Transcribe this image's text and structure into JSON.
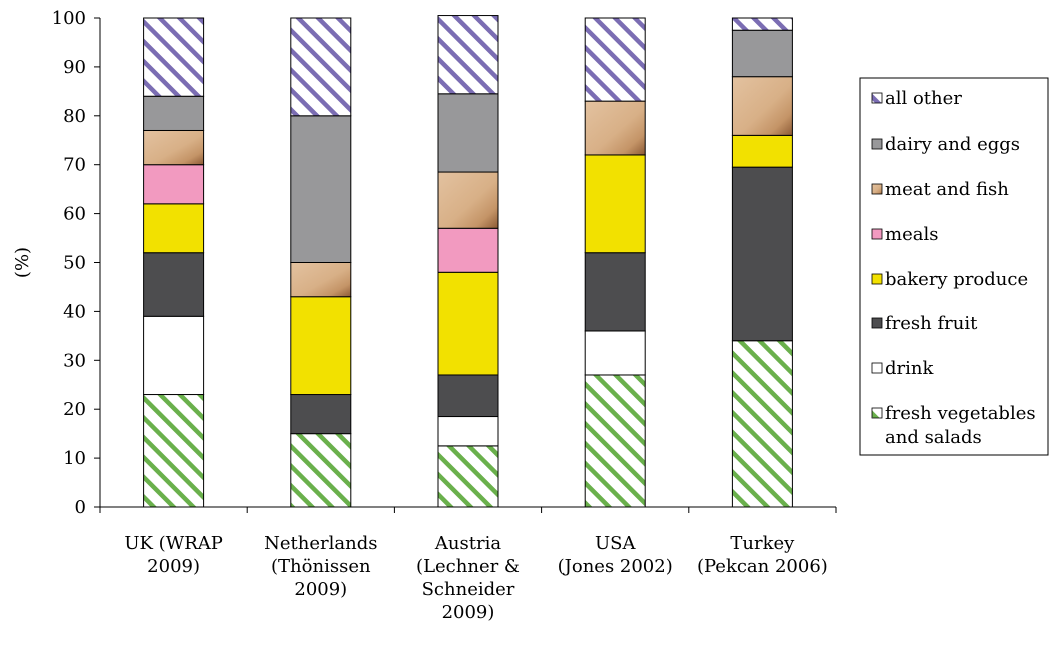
{
  "chart_data": {
    "type": "bar",
    "stacked": true,
    "ylabel": "(%)",
    "ylim": [
      0,
      100
    ],
    "yticks": [
      0,
      10,
      20,
      30,
      40,
      50,
      60,
      70,
      80,
      90,
      100
    ],
    "grid": false,
    "legend_position": "right",
    "categories": [
      [
        "UK (WRAP",
        "2009)"
      ],
      [
        "Netherlands",
        "(Thönissen",
        "2009)"
      ],
      [
        "Austria",
        "(Lechner &",
        "Schneider",
        "2009)"
      ],
      [
        "USA",
        "(Jones 2002)"
      ],
      [
        "Turkey",
        "(Pekcan 2006)"
      ]
    ],
    "series": [
      {
        "name": "fresh vegetables and salads",
        "legend_lines": [
          "fresh vegetables",
          "and salads"
        ],
        "pattern": "green-hatch",
        "color": "#6ab04c",
        "values": [
          23,
          15,
          12.5,
          27,
          34
        ]
      },
      {
        "name": "drink",
        "legend_lines": [
          "drink"
        ],
        "pattern": "solid",
        "color": "#ffffff",
        "values": [
          16,
          0,
          6,
          9,
          0
        ]
      },
      {
        "name": "fresh fruit",
        "legend_lines": [
          "fresh fruit"
        ],
        "pattern": "solid",
        "color": "#4d4d4f",
        "values": [
          13,
          8,
          8.5,
          16,
          35.5
        ]
      },
      {
        "name": "bakery produce",
        "legend_lines": [
          "bakery produce"
        ],
        "pattern": "solid",
        "color": "#f2e100",
        "values": [
          10,
          20,
          21,
          20,
          6.5
        ]
      },
      {
        "name": "meals",
        "legend_lines": [
          "meals"
        ],
        "pattern": "solid",
        "color": "#f29ac0",
        "values": [
          8,
          0,
          9,
          0,
          0
        ]
      },
      {
        "name": "meat and fish",
        "legend_lines": [
          "meat and fish"
        ],
        "pattern": "texture",
        "color": "#d9b48f",
        "values": [
          7,
          7,
          11.5,
          11,
          12
        ]
      },
      {
        "name": "dairy and eggs",
        "legend_lines": [
          "dairy and eggs"
        ],
        "pattern": "solid",
        "color": "#98989a",
        "values": [
          7,
          30,
          16,
          0,
          9.5
        ]
      },
      {
        "name": "all other",
        "legend_lines": [
          "all other"
        ],
        "pattern": "purple-hatch",
        "color": "#7b6db3",
        "values": [
          16,
          20,
          16,
          17,
          2.5
        ]
      }
    ]
  }
}
